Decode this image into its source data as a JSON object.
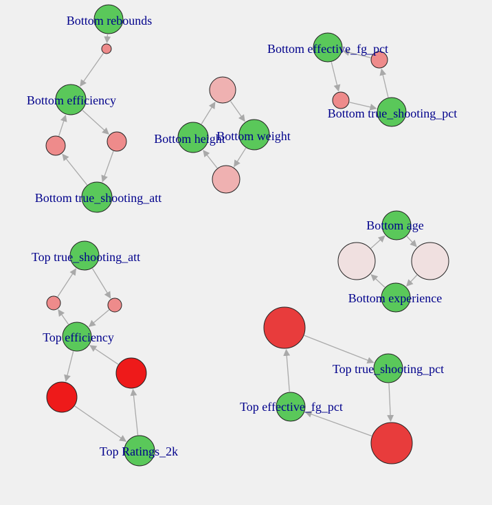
{
  "colors": {
    "background": "#f0f0f0",
    "label": "#00008b",
    "edge": "#a9a9a9",
    "variable_node": "#5ac85a",
    "factor_light_pink": "#efb1b1",
    "factor_salmon": "#ee8b8b",
    "factor_pale": "#f0e0e0",
    "factor_red": "#e83c3c",
    "factor_bright_red": "#ee1a1a"
  },
  "graph": {
    "nodes": [
      {
        "id": "v_bot_rebounds",
        "label": "Bottom rebounds",
        "kind": "variable",
        "color": "variable_node"
      },
      {
        "id": "f_reb_eff",
        "label": "",
        "kind": "factor",
        "color": "factor_salmon"
      },
      {
        "id": "v_bot_efficiency",
        "label": "Bottom efficiency",
        "kind": "variable",
        "color": "variable_node"
      },
      {
        "id": "f_eff_tsa_1",
        "label": "",
        "kind": "factor",
        "color": "factor_salmon"
      },
      {
        "id": "f_eff_tsa_2",
        "label": "",
        "kind": "factor",
        "color": "factor_salmon"
      },
      {
        "id": "v_bot_tsa",
        "label": "Bottom true_shooting_att",
        "kind": "variable",
        "color": "variable_node"
      },
      {
        "id": "f_hw_top",
        "label": "",
        "kind": "factor",
        "color": "factor_light_pink"
      },
      {
        "id": "v_bot_height",
        "label": "Bottom height",
        "kind": "variable",
        "color": "variable_node"
      },
      {
        "id": "v_bot_weight",
        "label": "Bottom weight",
        "kind": "variable",
        "color": "variable_node"
      },
      {
        "id": "f_hw_bottom",
        "label": "",
        "kind": "factor",
        "color": "factor_light_pink"
      },
      {
        "id": "v_bot_efg",
        "label": "Bottom effective_fg_pct",
        "kind": "variable",
        "color": "variable_node"
      },
      {
        "id": "f_efg_ts_1",
        "label": "",
        "kind": "factor",
        "color": "factor_salmon"
      },
      {
        "id": "f_efg_ts_2",
        "label": "",
        "kind": "factor",
        "color": "factor_salmon"
      },
      {
        "id": "v_bot_tsp",
        "label": "Bottom true_shooting_pct",
        "kind": "variable",
        "color": "variable_node"
      },
      {
        "id": "v_bot_age",
        "label": "Bottom age",
        "kind": "variable",
        "color": "variable_node"
      },
      {
        "id": "f_age_exp_1",
        "label": "",
        "kind": "factor",
        "color": "factor_pale"
      },
      {
        "id": "f_age_exp_2",
        "label": "",
        "kind": "factor",
        "color": "factor_pale"
      },
      {
        "id": "v_bot_exp",
        "label": "Bottom experience",
        "kind": "variable",
        "color": "variable_node"
      },
      {
        "id": "v_top_tsa",
        "label": "Top true_shooting_att",
        "kind": "variable",
        "color": "variable_node"
      },
      {
        "id": "f_ttsa_1",
        "label": "",
        "kind": "factor",
        "color": "factor_salmon"
      },
      {
        "id": "f_ttsa_2",
        "label": "",
        "kind": "factor",
        "color": "factor_salmon"
      },
      {
        "id": "v_top_eff",
        "label": "Top efficiency",
        "kind": "variable",
        "color": "variable_node"
      },
      {
        "id": "f_teff_1",
        "label": "",
        "kind": "factor",
        "color": "factor_bright_red"
      },
      {
        "id": "f_teff_2",
        "label": "",
        "kind": "factor",
        "color": "factor_bright_red"
      },
      {
        "id": "v_top_ratings",
        "label": "Top Ratings_2k",
        "kind": "variable",
        "color": "variable_node"
      },
      {
        "id": "f_top_a",
        "label": "",
        "kind": "factor",
        "color": "factor_red"
      },
      {
        "id": "v_top_tsp",
        "label": "Top true_shooting_pct",
        "kind": "variable",
        "color": "variable_node"
      },
      {
        "id": "f_top_b",
        "label": "",
        "kind": "factor",
        "color": "factor_red"
      },
      {
        "id": "v_top_efg",
        "label": "Top effective_fg_pct",
        "kind": "variable",
        "color": "variable_node"
      }
    ],
    "edges": [
      {
        "from": "v_bot_rebounds",
        "to": "f_reb_eff"
      },
      {
        "from": "f_reb_eff",
        "to": "v_bot_efficiency"
      },
      {
        "from": "v_bot_efficiency",
        "to": "f_eff_tsa_2"
      },
      {
        "from": "f_eff_tsa_2",
        "to": "v_bot_tsa"
      },
      {
        "from": "v_bot_tsa",
        "to": "f_eff_tsa_1"
      },
      {
        "from": "f_eff_tsa_1",
        "to": "v_bot_efficiency"
      },
      {
        "from": "v_bot_height",
        "to": "f_hw_top"
      },
      {
        "from": "f_hw_top",
        "to": "v_bot_weight"
      },
      {
        "from": "v_bot_weight",
        "to": "f_hw_bottom"
      },
      {
        "from": "f_hw_bottom",
        "to": "v_bot_height"
      },
      {
        "from": "v_bot_efg",
        "to": "f_efg_ts_1"
      },
      {
        "from": "f_efg_ts_1",
        "to": "v_bot_tsp"
      },
      {
        "from": "v_bot_tsp",
        "to": "f_efg_ts_2"
      },
      {
        "from": "f_efg_ts_2",
        "to": "v_bot_efg"
      },
      {
        "from": "v_bot_age",
        "to": "f_age_exp_2"
      },
      {
        "from": "f_age_exp_2",
        "to": "v_bot_exp"
      },
      {
        "from": "v_bot_exp",
        "to": "f_age_exp_1"
      },
      {
        "from": "f_age_exp_1",
        "to": "v_bot_age"
      },
      {
        "from": "v_top_tsa",
        "to": "f_ttsa_2"
      },
      {
        "from": "f_ttsa_2",
        "to": "v_top_eff"
      },
      {
        "from": "v_top_eff",
        "to": "f_ttsa_1"
      },
      {
        "from": "f_ttsa_1",
        "to": "v_top_tsa"
      },
      {
        "from": "v_top_eff",
        "to": "f_teff_1"
      },
      {
        "from": "f_teff_1",
        "to": "v_top_ratings"
      },
      {
        "from": "v_top_ratings",
        "to": "f_teff_2"
      },
      {
        "from": "f_teff_2",
        "to": "v_top_eff"
      },
      {
        "from": "f_top_a",
        "to": "v_top_tsp"
      },
      {
        "from": "v_top_tsp",
        "to": "f_top_b"
      },
      {
        "from": "f_top_b",
        "to": "v_top_efg"
      },
      {
        "from": "v_top_efg",
        "to": "f_top_a"
      }
    ]
  }
}
